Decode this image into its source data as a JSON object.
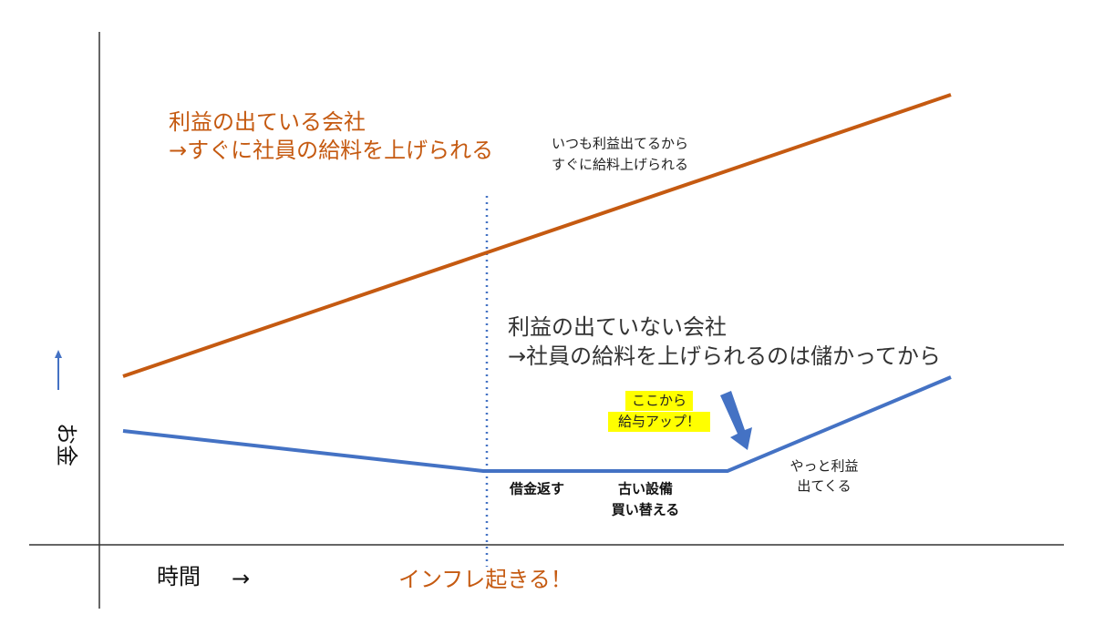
{
  "profit_company": {
    "title": "利益の出ている会社",
    "subtitle": "→すぐに社員の給料を上げられる",
    "note": [
      "いつも利益出てるから",
      "すぐに給料上げられる"
    ]
  },
  "no_profit_company": {
    "title": "利益の出ていない会社",
    "subtitle": "→社員の給料を上げられるのは儲かってから"
  },
  "callout": [
    "ここから",
    "給与アップ！"
  ],
  "phases": {
    "debt": "借金返す",
    "equipment": [
      "古い設備",
      "買い替える"
    ],
    "profit": [
      "やっと利益",
      "出てくる"
    ]
  },
  "axes": {
    "y_label": "お金",
    "x_label": "時間",
    "x_arrow": "→"
  },
  "event": "インフレ起きる！"
}
